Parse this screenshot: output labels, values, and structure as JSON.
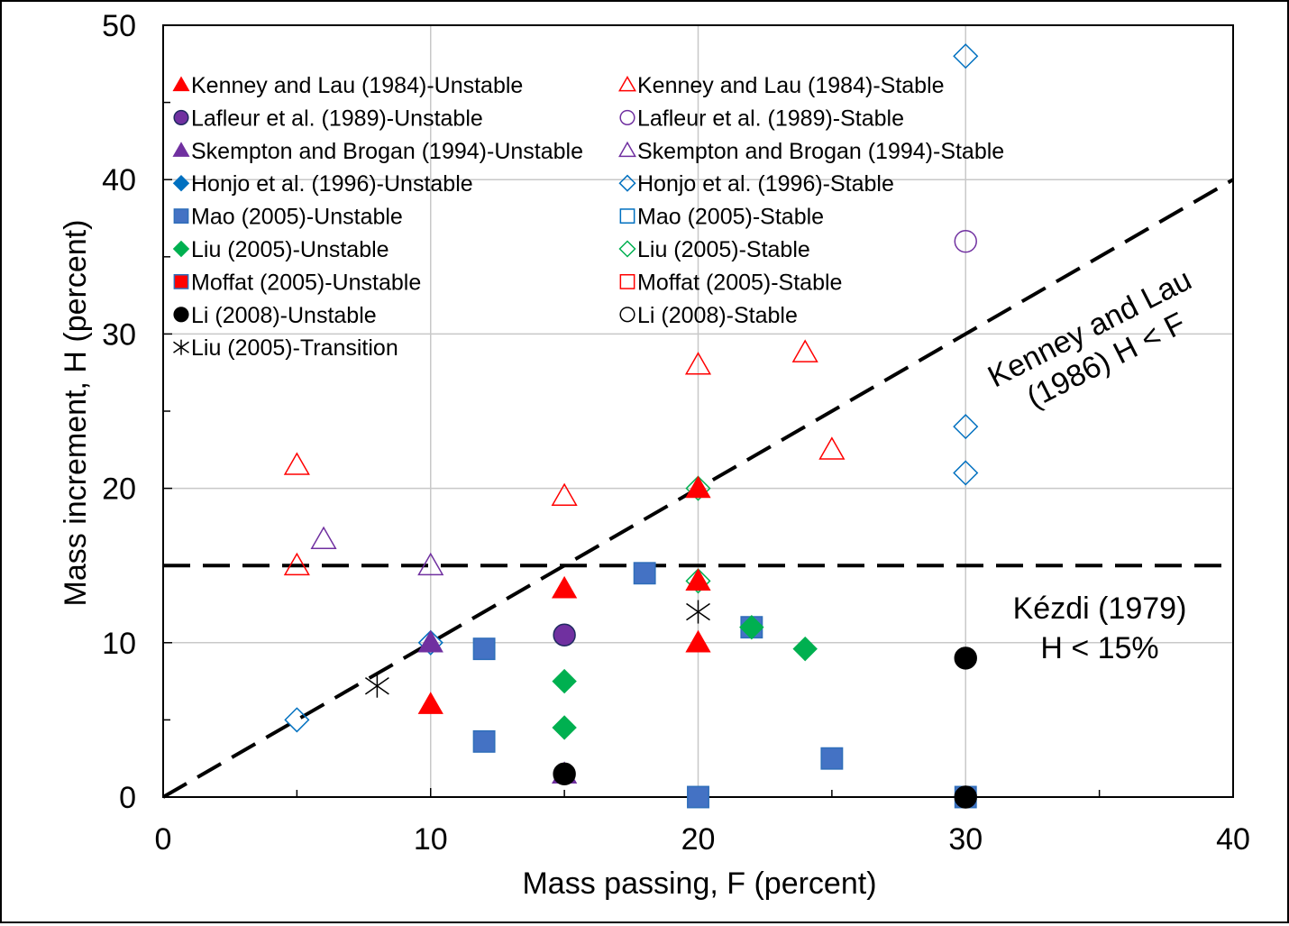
{
  "chart_data": {
    "type": "scatter",
    "xlabel": "Mass passing, F (percent)",
    "ylabel": "Mass increment, H (percent)",
    "xlim": [
      0,
      40
    ],
    "ylim": [
      0,
      50
    ],
    "xticks": [
      "0",
      "10",
      "20",
      "30",
      "40"
    ],
    "yticks": [
      "0",
      "10",
      "20",
      "30",
      "40",
      "50"
    ],
    "grid": true,
    "legend_position": "top-left",
    "series": [
      {
        "name": "Kenney and Lau (1984)-Unstable",
        "marker": "triangle",
        "filled": true,
        "color": "#FF0000",
        "points": [
          [
            10,
            6
          ],
          [
            15,
            13.5
          ],
          [
            20,
            20
          ],
          [
            20,
            14
          ],
          [
            20,
            10
          ]
        ]
      },
      {
        "name": "Kenney and Lau (1984)-Stable",
        "marker": "triangle",
        "filled": false,
        "color": "#FF0000",
        "points": [
          [
            5,
            21.5
          ],
          [
            5,
            15
          ],
          [
            15,
            19.5
          ],
          [
            20,
            28
          ],
          [
            24,
            28.8
          ],
          [
            25,
            22.5
          ]
        ]
      },
      {
        "name": "Lafleur et al. (1989)-Unstable",
        "marker": "circle",
        "filled": true,
        "color": "#7030A0",
        "points": [
          [
            15,
            10.5
          ]
        ]
      },
      {
        "name": "Lafleur et al. (1989)-Stable",
        "marker": "circle",
        "filled": false,
        "color": "#7030A0",
        "points": [
          [
            30,
            36
          ]
        ]
      },
      {
        "name": "Skempton and Brogan (1994)-Unstable",
        "marker": "triangle",
        "filled": true,
        "color": "#7030A0",
        "points": [
          [
            10,
            10
          ],
          [
            15,
            1.5
          ]
        ]
      },
      {
        "name": "Skempton and Brogan (1994)-Stable",
        "marker": "triangle",
        "filled": false,
        "color": "#7030A0",
        "points": [
          [
            6,
            16.7
          ],
          [
            10,
            15
          ]
        ]
      },
      {
        "name": "Honjo et al. (1996)-Unstable",
        "marker": "diamond",
        "filled": true,
        "color": "#0070C0",
        "points": []
      },
      {
        "name": "Honjo et al. (1996)-Stable",
        "marker": "diamond",
        "filled": false,
        "color": "#0070C0",
        "points": [
          [
            5,
            5
          ],
          [
            10,
            10
          ],
          [
            30,
            48
          ],
          [
            30,
            24
          ],
          [
            30,
            21
          ]
        ]
      },
      {
        "name": "Mao (2005)-Unstable",
        "marker": "square",
        "filled": true,
        "color": "#4472C4",
        "points": [
          [
            12,
            9.6
          ],
          [
            12,
            3.6
          ],
          [
            18,
            14.5
          ],
          [
            22,
            11
          ],
          [
            25,
            2.5
          ],
          [
            20,
            0
          ],
          [
            30,
            0
          ]
        ]
      },
      {
        "name": "Mao (2005)-Stable",
        "marker": "square",
        "filled": false,
        "color": "#0070C0",
        "points": []
      },
      {
        "name": "Liu (2005)-Unstable",
        "marker": "diamond",
        "filled": true,
        "color": "#00B050",
        "points": [
          [
            15,
            7.5
          ],
          [
            15,
            4.5
          ],
          [
            22,
            11
          ],
          [
            24,
            9.6
          ]
        ]
      },
      {
        "name": "Liu (2005)-Stable",
        "marker": "diamond",
        "filled": false,
        "color": "#00B050",
        "points": [
          [
            20,
            20
          ],
          [
            20,
            14
          ]
        ]
      },
      {
        "name": "Moffat (2005)-Unstable",
        "marker": "square",
        "filled": true,
        "color": "#FF0000",
        "points": []
      },
      {
        "name": "Moffat (2005)-Stable",
        "marker": "square",
        "filled": false,
        "color": "#FF0000",
        "points": []
      },
      {
        "name": "Li (2008)-Unstable",
        "marker": "circle",
        "filled": true,
        "color": "#000000",
        "points": [
          [
            15,
            1.5
          ],
          [
            30,
            9
          ],
          [
            30,
            0
          ]
        ]
      },
      {
        "name": "Li (2008)-Stable",
        "marker": "circle",
        "filled": false,
        "color": "#000000",
        "points": []
      },
      {
        "name": "Liu (2005)-Transition",
        "marker": "star",
        "filled": false,
        "color": "#000000",
        "points": [
          [
            8,
            7.2
          ],
          [
            20,
            12
          ]
        ]
      }
    ],
    "reference_lines": [
      {
        "label_line1": "Kenney and Lau",
        "label_line2": "(1986) H < F",
        "from": [
          0,
          0
        ],
        "to": [
          40,
          40
        ]
      },
      {
        "label_line1": "Kézdi (1979)",
        "label_line2": "H < 15%",
        "from": [
          0,
          15
        ],
        "to": [
          40,
          15
        ]
      }
    ]
  }
}
